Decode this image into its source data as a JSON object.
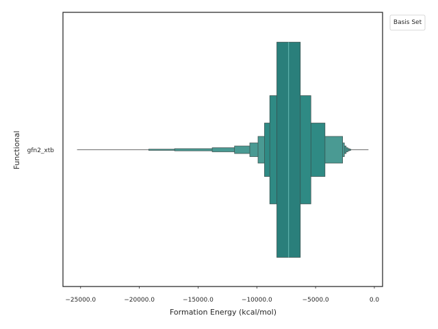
{
  "chart_data": {
    "type": "boxen",
    "xlabel": "Formation Energy (kcal/mol)",
    "ylabel": "Functional",
    "categories": [
      "gfn2_xtb"
    ],
    "xlim": [
      -26500,
      700
    ],
    "xticks": [
      -25000,
      -20000,
      -15000,
      -10000,
      -5000,
      0
    ],
    "xtick_labels": [
      "−25000.0",
      "−20000.0",
      "−15000.0",
      "−10000.0",
      "−5000.0",
      "0.0"
    ],
    "median": -7300,
    "boxes": [
      {
        "lo": -8300,
        "hi": -6300,
        "level": 0
      },
      {
        "lo": -8900,
        "hi": -5400,
        "level": 1
      },
      {
        "lo": -9350,
        "hi": -4200,
        "level": 2
      },
      {
        "lo": -9900,
        "hi": -2700,
        "level": 3
      },
      {
        "lo": -10600,
        "hi": -2550,
        "level": 4
      },
      {
        "lo": -11900,
        "hi": -2400,
        "level": 5
      },
      {
        "lo": -13800,
        "hi": -2250,
        "level": 6
      },
      {
        "lo": -17000,
        "hi": -2120,
        "level": 7
      },
      {
        "lo": -19200,
        "hi": -2000,
        "level": 8
      }
    ],
    "whisker": {
      "lo": -25300,
      "hi": -500
    },
    "legend": {
      "title": "Basis Set",
      "placement": "upper-right-outside"
    },
    "color": "#2a7f7b",
    "grid": false
  }
}
